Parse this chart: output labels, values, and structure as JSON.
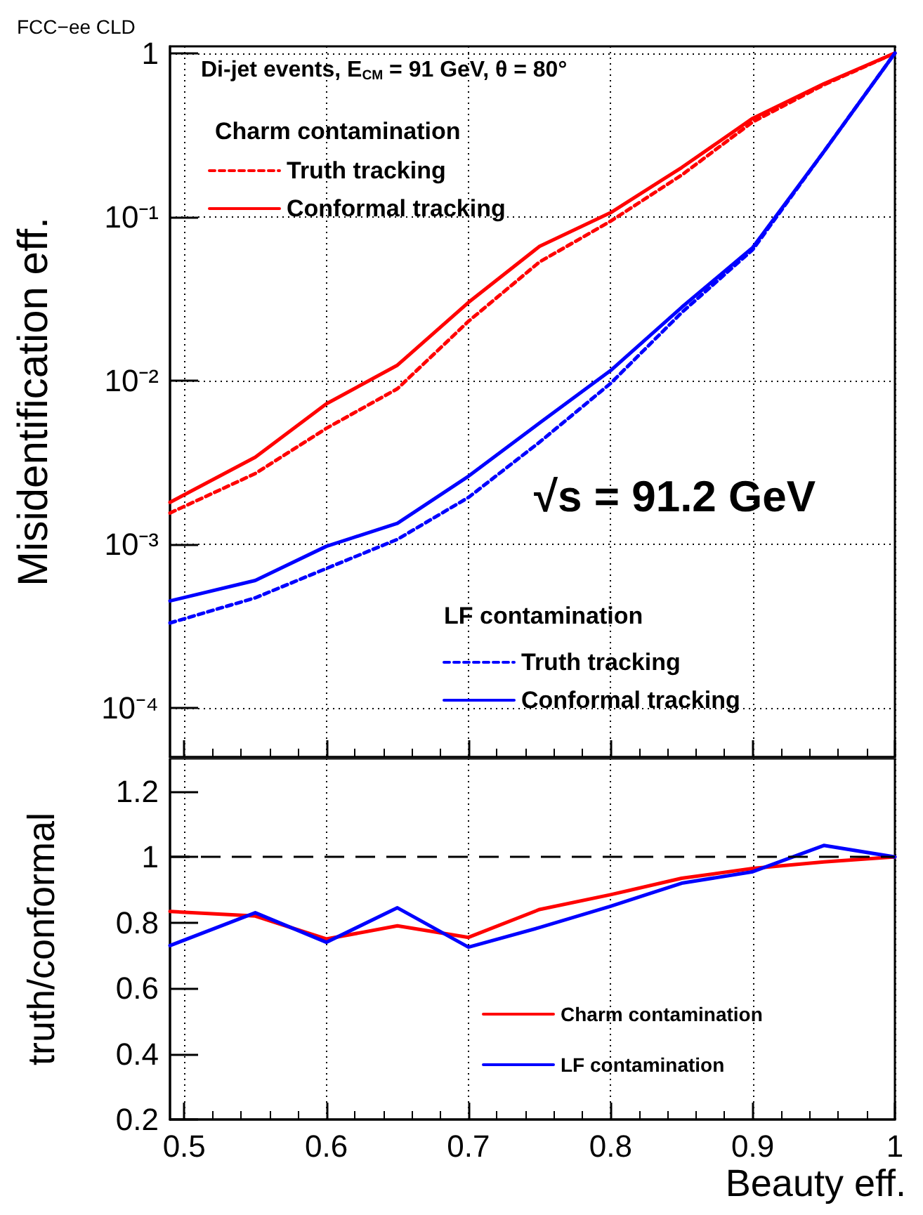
{
  "chart_data": [
    {
      "type": "line",
      "ylabel": "Misidentification eff.",
      "log": "y",
      "grid": true,
      "legend": "left",
      "tick_labels": "y",
      "marker": "none",
      "annotations": [
        "FCC−ee CLD",
        "Di-jet events, E$_{CM}$ = 91 GeV, θ = 80°",
        "√s = 91.2 GeV",
        "Charm contamination",
        "LF contamination"
      ],
      "x": [
        0.49,
        0.55,
        0.6,
        0.65,
        0.7,
        0.75,
        0.8,
        0.85,
        0.9,
        0.95,
        1.0
      ],
      "xlim": [
        0.49,
        1.0
      ],
      "xticks": [
        0.5,
        0.6,
        0.7,
        0.8,
        0.9,
        1.0
      ],
      "ylim": [
        5e-05,
        1.1
      ],
      "yticks": [
        {
          "value": 0.0001,
          "label": "10⁻⁴"
        },
        {
          "value": 0.001,
          "label": "10⁻³"
        },
        {
          "value": 0.01,
          "label": "10⁻²"
        },
        {
          "value": 0.1,
          "label": "10⁻¹"
        },
        1
      ],
      "series": [
        {
          "name": "Truth tracking",
          "color": "#ff0000",
          "line_style": "dashed",
          "values": [
            0.00155,
            0.0027,
            0.0051,
            0.0089,
            0.023,
            0.053,
            0.094,
            0.18,
            0.38,
            0.64,
            1.0
          ]
        },
        {
          "name": "Conformal tracking",
          "color": "#ff0000",
          "line_style": "solid",
          "values": [
            0.0018,
            0.0034,
            0.0072,
            0.0124,
            0.03,
            0.066,
            0.106,
            0.2,
            0.4,
            0.65,
            1.0
          ]
        },
        {
          "name": "Truth tracking",
          "color": "#0000ff",
          "line_style": "dashed",
          "values": [
            0.00033,
            0.00047,
            0.00071,
            0.00107,
            0.00193,
            0.0042,
            0.0096,
            0.026,
            0.063,
            0.25,
            1.0
          ]
        },
        {
          "name": "Conformal tracking",
          "color": "#0000ff",
          "line_style": "solid",
          "values": [
            0.00045,
            0.0006,
            0.00097,
            0.00134,
            0.0026,
            0.0055,
            0.0115,
            0.028,
            0.065,
            0.25,
            1.0
          ]
        }
      ]
    },
    {
      "type": "line",
      "xlabel": "Beauty eff.",
      "ylabel": "truth/conformal",
      "grid": "x",
      "legend": "bottom right",
      "marker": "none",
      "x": [
        0.49,
        0.55,
        0.6,
        0.65,
        0.7,
        0.75,
        0.8,
        0.85,
        0.9,
        0.95,
        1.0
      ],
      "xlim": [
        0.49,
        1.0
      ],
      "xticks": [
        0.5,
        0.6,
        0.7,
        0.8,
        0.9,
        1
      ],
      "ylim": [
        0.2,
        1.3
      ],
      "yticks": [
        0.2,
        0.4,
        0.6,
        0.8,
        1,
        1.2
      ],
      "ref_lines": [
        {
          "axis": "y",
          "value": 1,
          "color": "#000000",
          "line_style": "dashed"
        }
      ],
      "series": [
        {
          "name": "Charm contamination",
          "color": "#ff0000",
          "values": [
            0.834,
            0.82,
            0.75,
            0.79,
            0.755,
            0.84,
            0.885,
            0.935,
            0.965,
            0.985,
            1.0
          ]
        },
        {
          "name": "LF contamination",
          "color": "#0000ff",
          "values": [
            0.73,
            0.83,
            0.74,
            0.845,
            0.725,
            0.785,
            0.85,
            0.92,
            0.955,
            1.035,
            1.0
          ]
        }
      ]
    }
  ]
}
